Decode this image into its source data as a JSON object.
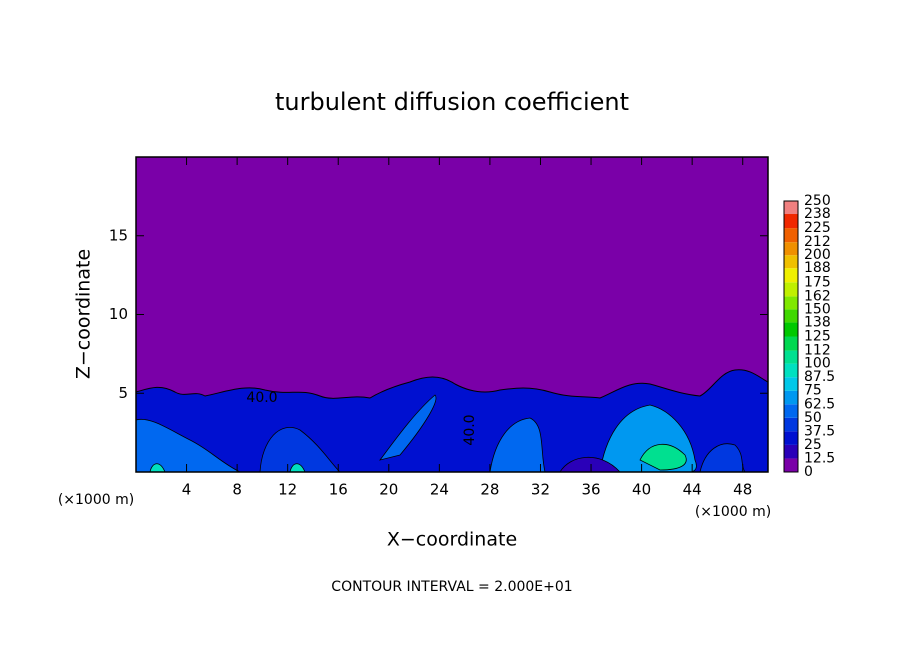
{
  "chart_data": {
    "type": "contour",
    "title": "turbulent diffusion coefficient",
    "xlabel": "X−coordinate",
    "ylabel": "Z−coordinate",
    "x_unit_note": "(×1000 m)",
    "y_unit_note": "(×1000 m)",
    "annotation": "CONTOUR INTERVAL = 2.000E+01",
    "contour_labels": [
      "40.0",
      "40.0"
    ],
    "xlim": [
      0,
      50
    ],
    "ylim": [
      0,
      20
    ],
    "xticks": [
      4,
      8,
      12,
      16,
      20,
      24,
      28,
      32,
      36,
      40,
      44,
      48
    ],
    "yticks": [
      5,
      10,
      15
    ],
    "levels": [
      0,
      12.5,
      25,
      37.5,
      50,
      62.5,
      75,
      87.5,
      100,
      112,
      125,
      138,
      150,
      162,
      175,
      188,
      200,
      212,
      225,
      238,
      250
    ],
    "colors": [
      "#7a00a8",
      "#2a00b8",
      "#0010d0",
      "#0038e0",
      "#0068f0",
      "#0098f0",
      "#00c8e8",
      "#00e0c0",
      "#00e090",
      "#00d850",
      "#00c800",
      "#40d800",
      "#80e800",
      "#c0f000",
      "#f0f000",
      "#f0c000",
      "#f09000",
      "#f06000",
      "#f02800",
      "#f08080"
    ]
  }
}
